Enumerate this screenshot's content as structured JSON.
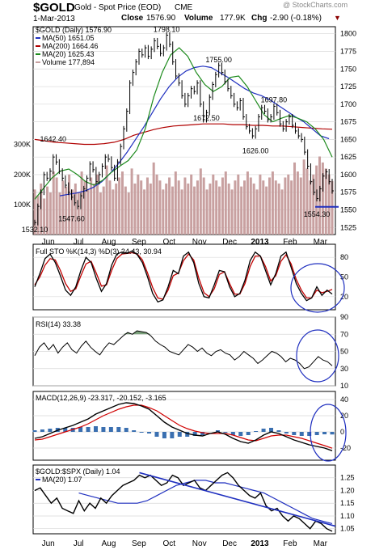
{
  "header": {
    "symbol": "$GOLD",
    "name": "Gold - Spot Price (EOD)",
    "exchange": "CME",
    "date": "1-Mar-2013",
    "close_label": "Close",
    "close": "1576.90",
    "volume_label": "Volume",
    "volume": "177.9K",
    "chg_label": "Chg",
    "chg": "-2.90 (-0.18%)",
    "watermark": "@ StockCharts.com"
  },
  "colors": {
    "price": "#000000",
    "ma50": "#1f2fbf",
    "ma200": "#b00000",
    "ma20": "#1c8a1c",
    "volume": "#c8a0a0",
    "grid": "#d8d8d8",
    "annot": "#1f2fbf",
    "frame": "#000000"
  },
  "x_labels": [
    "Jun",
    "Jul",
    "Aug",
    "Sep",
    "Oct",
    "Nov",
    "Dec",
    "2013",
    "Feb",
    "Mar"
  ],
  "chart_data": [
    {
      "type": "line",
      "title": "$GOLD (Daily) 1576.90",
      "ylim": [
        1515,
        1810
      ],
      "y_ticks": [
        1525,
        1550,
        1575,
        1600,
        1625,
        1650,
        1675,
        1700,
        1725,
        1750,
        1775,
        1800
      ],
      "legend": [
        {
          "text": "$GOLD (Daily) 1576.90",
          "color_key": "price"
        },
        {
          "text": "MA(50) 1651.05",
          "color_key": "ma50"
        },
        {
          "text": "MA(200) 1664.46",
          "color_key": "ma200"
        },
        {
          "text": "MA(20) 1625.43",
          "color_key": "ma20"
        },
        {
          "text": "Volume 177,894",
          "color_key": "volume"
        }
      ],
      "price_series": [
        1532,
        1555,
        1575,
        1600,
        1595,
        1605,
        1625,
        1618,
        1605,
        1595,
        1585,
        1575,
        1568,
        1560,
        1555,
        1570,
        1580,
        1595,
        1615,
        1607,
        1590,
        1600,
        1612,
        1625,
        1622,
        1610,
        1595,
        1618,
        1640,
        1665,
        1690,
        1730,
        1745,
        1760,
        1775,
        1770,
        1780,
        1768,
        1778,
        1790,
        1782,
        1772,
        1780,
        1798,
        1785,
        1760,
        1740,
        1730,
        1712,
        1700,
        1712,
        1722,
        1718,
        1730,
        1700,
        1678,
        1688,
        1710,
        1728,
        1742,
        1755,
        1745,
        1732,
        1722,
        1712,
        1700,
        1695,
        1705,
        1682,
        1668,
        1662,
        1655,
        1665,
        1682,
        1695,
        1690,
        1678,
        1682,
        1697,
        1688,
        1672,
        1665,
        1675,
        1682,
        1670,
        1662,
        1655,
        1650,
        1632,
        1612,
        1590,
        1575,
        1566,
        1580,
        1598,
        1604,
        1590,
        1577
      ],
      "ma50": [
        1570,
        1572,
        1574,
        1577,
        1582,
        1590,
        1602,
        1616,
        1632,
        1650,
        1668,
        1688,
        1708,
        1725,
        1738,
        1747,
        1752,
        1754,
        1752,
        1745,
        1738,
        1730,
        1722,
        1716,
        1712,
        1706,
        1698,
        1690,
        1682,
        1675,
        1665,
        1655,
        1651
      ],
      "ma200": [
        1650,
        1648,
        1646,
        1645,
        1644,
        1643,
        1643,
        1644,
        1646,
        1650,
        1656,
        1660,
        1664,
        1667,
        1669,
        1670,
        1671,
        1672,
        1672,
        1672,
        1671,
        1671,
        1670,
        1670,
        1669,
        1669,
        1668,
        1667,
        1666,
        1665,
        1664.46
      ],
      "ma20": [
        1565,
        1580,
        1595,
        1605,
        1608,
        1600,
        1590,
        1585,
        1592,
        1603,
        1612,
        1620,
        1635,
        1665,
        1710,
        1745,
        1770,
        1780,
        1768,
        1745,
        1728,
        1718,
        1725,
        1738,
        1740,
        1725,
        1705,
        1685,
        1675,
        1680,
        1684,
        1680,
        1675,
        1665,
        1650,
        1625
      ],
      "volume": [
        150,
        130,
        170,
        120,
        160,
        140,
        210,
        190,
        140,
        180,
        160,
        200,
        150,
        170,
        140,
        210,
        180,
        150,
        190,
        170,
        200,
        140,
        160,
        230,
        180,
        150,
        170,
        190,
        210,
        160,
        140,
        220,
        170,
        200,
        180,
        150,
        190,
        170,
        240,
        200,
        180,
        150,
        170,
        190,
        160,
        210,
        180,
        150,
        190,
        170,
        200,
        160,
        180,
        220,
        190,
        150,
        170,
        200,
        180,
        160,
        190,
        210,
        170,
        150,
        180,
        200,
        160,
        180,
        210,
        190,
        170,
        150,
        200,
        180,
        160,
        190,
        210,
        180,
        170,
        150,
        190,
        200,
        180,
        240,
        210,
        190,
        250,
        220,
        180,
        200,
        230,
        260,
        240,
        220,
        200,
        178
      ],
      "volume_ticks": [
        "100K",
        "200K",
        "300K"
      ],
      "annotations": [
        {
          "text": "1532.10",
          "x": 0,
          "y": 1532.1
        },
        {
          "text": "1547.60",
          "x": 12,
          "y": 1547.6
        },
        {
          "text": "1642.40",
          "x": 6,
          "y": 1642.4
        },
        {
          "text": "1798.10",
          "x": 43,
          "y": 1798.1
        },
        {
          "text": "1755.00",
          "x": 60,
          "y": 1755.0
        },
        {
          "text": "1672.50",
          "x": 56,
          "y": 1672.5
        },
        {
          "text": "1697.80",
          "x": 78,
          "y": 1697.8
        },
        {
          "text": "1626.00",
          "x": 72,
          "y": 1626.0
        },
        {
          "text": "1554.30",
          "x": 92,
          "y": 1554.3
        }
      ]
    },
    {
      "type": "line",
      "title": "Full STO %K(14,3) %D(3) 24.43, 30.94",
      "ylim": [
        0,
        100
      ],
      "y_ticks": [
        20,
        50,
        80
      ],
      "k": [
        35,
        55,
        78,
        85,
        72,
        52,
        30,
        22,
        35,
        60,
        80,
        72,
        48,
        28,
        40,
        68,
        85,
        88,
        86,
        90,
        84,
        72,
        50,
        25,
        12,
        15,
        35,
        60,
        55,
        82,
        88,
        72,
        40,
        20,
        18,
        38,
        60,
        58,
        35,
        20,
        25,
        45,
        75,
        88,
        82,
        60,
        38,
        55,
        82,
        88,
        65,
        40,
        25,
        14,
        18,
        35,
        22,
        30,
        24
      ],
      "d": [
        38,
        50,
        68,
        78,
        76,
        60,
        40,
        28,
        32,
        52,
        70,
        74,
        56,
        36,
        38,
        60,
        78,
        85,
        86,
        87,
        85,
        76,
        56,
        34,
        18,
        16,
        30,
        52,
        56,
        75,
        85,
        76,
        48,
        26,
        20,
        32,
        54,
        58,
        40,
        24,
        24,
        40,
        66,
        82,
        82,
        66,
        44,
        52,
        74,
        84,
        70,
        46,
        30,
        18,
        18,
        30,
        26,
        28,
        31
      ]
    },
    {
      "type": "line",
      "title": "RSI(14) 33.38",
      "ylim": [
        10,
        90
      ],
      "y_ticks": [
        10,
        30,
        50,
        70,
        90
      ],
      "rsi": [
        45,
        55,
        60,
        52,
        58,
        48,
        55,
        60,
        52,
        48,
        56,
        62,
        55,
        50,
        46,
        54,
        60,
        58,
        63,
        68,
        72,
        70,
        74,
        73,
        72,
        68,
        62,
        58,
        55,
        50,
        48,
        46,
        52,
        58,
        55,
        50,
        54,
        48,
        45,
        50,
        52,
        48,
        46,
        40,
        44,
        50,
        46,
        42,
        36,
        40,
        45,
        50,
        48,
        44,
        38,
        42,
        40,
        36,
        30,
        32,
        38,
        44,
        40,
        38,
        33.38
      ]
    },
    {
      "type": "line",
      "title": "MACD(12,26,9) -23.317, -20.152, -3.165",
      "ylim": [
        -35,
        50
      ],
      "y_ticks": [
        -20,
        0,
        20,
        40
      ],
      "macd": [
        -8,
        -6,
        -2,
        2,
        5,
        8,
        12,
        16,
        22,
        26,
        30,
        34,
        36,
        35,
        32,
        28,
        20,
        12,
        6,
        2,
        -2,
        -4,
        -5,
        -2,
        0,
        -3,
        -8,
        -12,
        -14,
        -10,
        -4,
        0,
        -2,
        -6,
        -10,
        -13,
        -16,
        -18,
        -20,
        -23.3
      ],
      "signal": [
        -10,
        -9,
        -6,
        -3,
        0,
        3,
        6,
        10,
        15,
        20,
        24,
        28,
        31,
        33,
        33,
        30,
        26,
        20,
        14,
        8,
        4,
        1,
        -1,
        -2,
        -2,
        -2,
        -4,
        -7,
        -10,
        -11,
        -8,
        -5,
        -4,
        -4,
        -6,
        -8,
        -11,
        -14,
        -17,
        -20.2
      ],
      "histogram": [
        2,
        3,
        4,
        5,
        5,
        5,
        6,
        6,
        7,
        6,
        6,
        6,
        5,
        2,
        -1,
        -2,
        -6,
        -8,
        -8,
        -6,
        -6,
        -5,
        -4,
        0,
        2,
        -1,
        -4,
        -5,
        -4,
        1,
        4,
        5,
        2,
        -2,
        -4,
        -5,
        -5,
        -4,
        -3,
        -3.2
      ]
    },
    {
      "type": "line",
      "title": "$GOLD:$SPX (Daily) 1.04",
      "ylim": [
        1.03,
        1.3
      ],
      "y_ticks": [
        1.05,
        1.1,
        1.15,
        1.2,
        1.25
      ],
      "ratio": [
        1.2,
        1.21,
        1.18,
        1.15,
        1.17,
        1.13,
        1.12,
        1.11,
        1.16,
        1.12,
        1.15,
        1.13,
        1.17,
        1.15,
        1.18,
        1.2,
        1.22,
        1.23,
        1.24,
        1.26,
        1.25,
        1.26,
        1.24,
        1.22,
        1.23,
        1.26,
        1.25,
        1.22,
        1.23,
        1.24,
        1.21,
        1.2,
        1.22,
        1.24,
        1.26,
        1.27,
        1.25,
        1.22,
        1.2,
        1.18,
        1.17,
        1.19,
        1.14,
        1.12,
        1.13,
        1.1,
        1.08,
        1.1,
        1.09,
        1.07,
        1.05,
        1.08,
        1.07,
        1.05,
        1.04
      ],
      "ma20": [
        1.19,
        1.18,
        1.17,
        1.16,
        1.15,
        1.15,
        1.15,
        1.16,
        1.18,
        1.2,
        1.22,
        1.23,
        1.24,
        1.24,
        1.23,
        1.23,
        1.22,
        1.21,
        1.2,
        1.19,
        1.17,
        1.15,
        1.13,
        1.11,
        1.09,
        1.08,
        1.07
      ]
    }
  ],
  "legends": {
    "ma20_ratio": "MA(20) 1.07"
  }
}
